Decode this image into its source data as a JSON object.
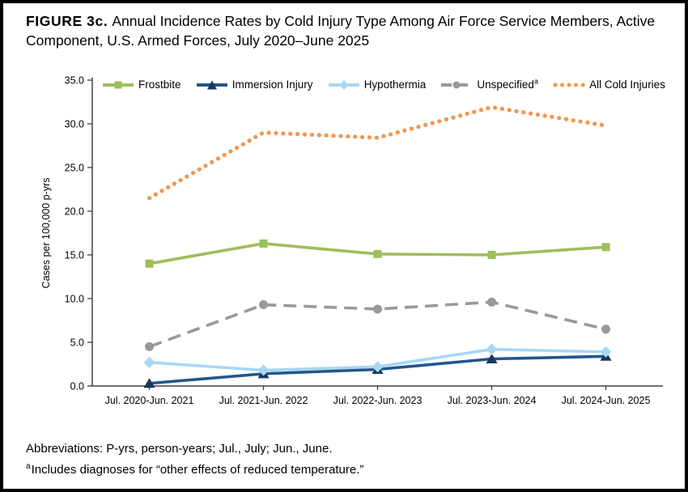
{
  "figure": {
    "label": "FIGURE 3c.",
    "title": "Annual Incidence Rates by Cold Injury Type Among Air Force Service Members, Active Component, U.S. Armed Forces, July 2020–June 2025"
  },
  "footer": {
    "abbreviations": "Abbreviations: P-yrs, person-years; Jul., July; Jun., June.",
    "footnote_marker": "a",
    "footnote_text": "Includes diagnoses for “other effects of reduced temperature.”"
  },
  "chart_data": {
    "type": "line",
    "title": "",
    "xlabel": "",
    "ylabel": "Cases per 100,000 p-yrs",
    "ylim": [
      0,
      35
    ],
    "ytick_step": 5,
    "grid": false,
    "legend_position": "top",
    "axis_color": "#404040",
    "categories": [
      "Jul. 2020-Jun. 2021",
      "Jul. 2021-Jun. 2022",
      "Jul. 2022-Jun. 2023",
      "Jul. 2023-Jun. 2024",
      "Jul. 2024-Jun. 2025"
    ],
    "series": [
      {
        "name": "Frostbite",
        "color": "#9DBE5B",
        "marker": "square",
        "line": "solid",
        "values": [
          14.0,
          16.3,
          15.1,
          15.0,
          15.9
        ]
      },
      {
        "name": "Immersion Injury",
        "color": "#24558C",
        "marker_color": "#17375E",
        "marker": "triangle",
        "line": "solid",
        "values": [
          0.3,
          1.4,
          1.9,
          3.1,
          3.4
        ]
      },
      {
        "name": "Hypothermia",
        "color": "#A8D7F2",
        "marker": "diamond",
        "line": "solid",
        "values": [
          2.7,
          1.8,
          2.2,
          4.2,
          3.9
        ]
      },
      {
        "name": "Unspecified",
        "sup": "a",
        "color": "#999999",
        "marker": "circle",
        "line": "dashed",
        "values": [
          4.5,
          9.3,
          8.8,
          9.6,
          6.5
        ]
      },
      {
        "name": "All Cold Injuries",
        "color": "#F2964E",
        "marker": "none",
        "line": "dotted",
        "values": [
          21.5,
          29.0,
          28.4,
          31.9,
          29.8
        ]
      }
    ]
  }
}
